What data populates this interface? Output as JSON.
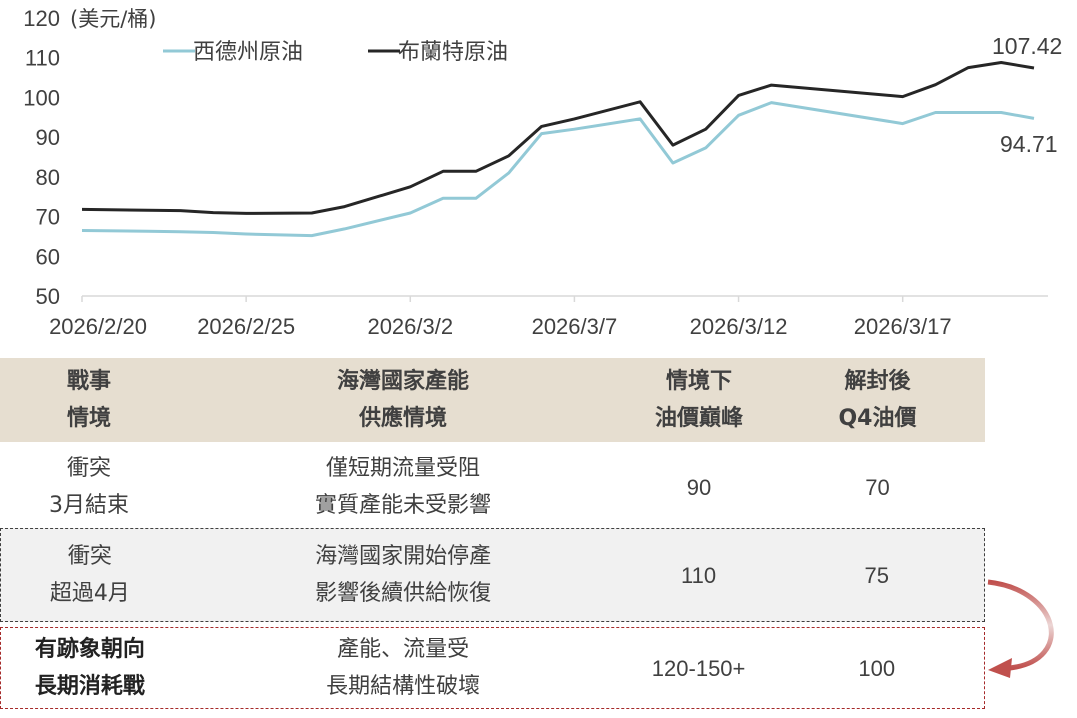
{
  "chart_data": {
    "type": "line",
    "unit_label": "(美元/桶)",
    "ylim": [
      50,
      120
    ],
    "y_ticks": [
      50,
      60,
      70,
      80,
      90,
      100,
      110,
      120
    ],
    "x_tick_labels": [
      "2026/2/20",
      "2026/2/25",
      "2026/3/2",
      "2026/3/7",
      "2026/3/12",
      "2026/3/17"
    ],
    "x_tick_positions": [
      0,
      5,
      10,
      15,
      20,
      25
    ],
    "series": [
      {
        "name": "西德州原油",
        "color": "#92c9d6",
        "x": [
          0,
          2,
          3,
          4,
          5,
          7,
          8,
          10,
          11,
          12,
          13,
          14,
          15,
          17,
          18,
          19,
          20,
          21,
          25,
          26,
          27,
          28,
          29
        ],
        "values": [
          66.5,
          66.3,
          66.2,
          66.0,
          65.6,
          65.2,
          66.9,
          70.9,
          74.6,
          74.6,
          81.0,
          90.9,
          92.0,
          94.6,
          83.5,
          87.3,
          95.5,
          98.7,
          93.4,
          96.2,
          96.2,
          96.2,
          94.71
        ],
        "end_label": "94.71"
      },
      {
        "name": "布蘭特原油",
        "color": "#262626",
        "x": [
          0,
          2,
          3,
          4,
          5,
          7,
          8,
          10,
          11,
          12,
          13,
          14,
          15,
          17,
          18,
          19,
          20,
          21,
          25,
          26,
          27,
          28,
          29
        ],
        "values": [
          71.8,
          71.6,
          71.5,
          71.0,
          70.8,
          70.9,
          72.5,
          77.5,
          81.4,
          81.4,
          85.3,
          92.7,
          94.6,
          98.9,
          88.0,
          92.0,
          100.5,
          103.1,
          100.2,
          103.2,
          107.5,
          108.8,
          107.42
        ],
        "end_label": "107.42"
      }
    ]
  },
  "table": {
    "header": [
      [
        "戰事",
        "情境"
      ],
      [
        "海灣國家產能",
        "供應情境"
      ],
      [
        "情境下",
        "油價巔峰"
      ],
      [
        "解封後",
        "Q4油價"
      ]
    ],
    "rows": [
      {
        "c1": [
          "衝突",
          "3月結束"
        ],
        "c2": [
          "僅短期流量受阻",
          "實質產能未受影響"
        ],
        "c3": "90",
        "c4": "70"
      },
      {
        "c1": [
          "衝突",
          "超過4月"
        ],
        "c2": [
          "海灣國家開始停產",
          "影響後續供給恢復"
        ],
        "c3": "110",
        "c4": "75"
      },
      {
        "c1": [
          "有跡象朝向",
          "長期消耗戰"
        ],
        "c2": [
          "產能、流量受",
          "長期結構性破壞"
        ],
        "c3": "120-150+",
        "c4": "100"
      }
    ]
  },
  "colors": {
    "header_bg": "#e6ded0",
    "highlight_bg": "#f1f1f1",
    "arrow": "#c0504d",
    "dash_red": "#a52a2a"
  }
}
